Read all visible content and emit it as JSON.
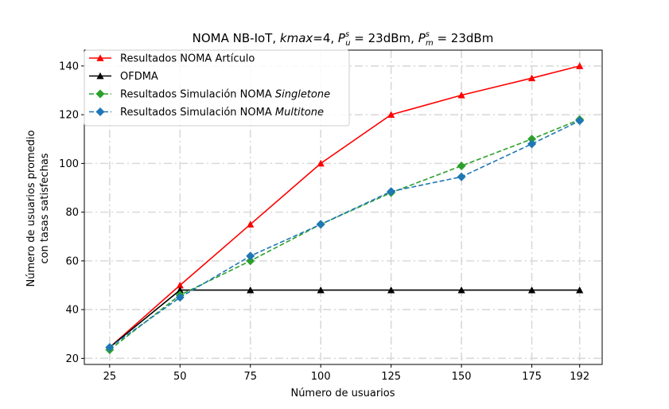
{
  "chart_data": {
    "type": "line",
    "title": {
      "prefix": "NOMA NB-IoT, ",
      "kmax_var": "kmax",
      "kmax_value": "=4, ",
      "pu_sym": "P",
      "pu_sup": "s",
      "pu_sub": "u",
      "pu_value": " = 23dBm, ",
      "pm_sym": "P",
      "pm_sup": "s",
      "pm_sub": "m",
      "pm_value": " = 23dBm"
    },
    "xlabel": "Número de usuarios",
    "ylabel_line1": "Número de usuarios promedio",
    "ylabel_line2": "con tasas satisfechas",
    "x": [
      25,
      50,
      75,
      100,
      125,
      150,
      175,
      192
    ],
    "x_tick_labels": [
      "25",
      "50",
      "75",
      "100",
      "125",
      "150",
      "175",
      "192"
    ],
    "y_ticks": [
      20,
      40,
      60,
      80,
      100,
      120,
      140
    ],
    "xlim": [
      16,
      200
    ],
    "ylim": [
      17.5,
      146.5
    ],
    "grid": true,
    "legend_position": "upper-left",
    "series": [
      {
        "name": "Resultados NOMA Artículo",
        "name_italic": "",
        "color": "#ff0000",
        "linestyle": "solid",
        "marker": "triangle",
        "values": [
          24.5,
          50,
          75,
          100,
          120,
          128,
          135,
          140
        ]
      },
      {
        "name": "OFDMA",
        "name_italic": "",
        "color": "#000000",
        "linestyle": "solid",
        "marker": "triangle",
        "values": [
          24.5,
          48,
          48,
          48,
          48,
          48,
          48,
          48
        ]
      },
      {
        "name": "Resultados Simulación NOMA ",
        "name_italic": "Singletone",
        "color": "#2ca02c",
        "linestyle": "dashed",
        "marker": "diamond",
        "values": [
          23.5,
          46,
          60,
          75,
          88,
          99,
          110,
          118
        ]
      },
      {
        "name": "Resultados Simulación NOMA ",
        "name_italic": "Multitone",
        "color": "#1f77b4",
        "linestyle": "dashed",
        "marker": "diamond",
        "values": [
          24.5,
          45,
          62,
          75,
          88.5,
          94.5,
          108,
          117.5
        ]
      }
    ]
  }
}
